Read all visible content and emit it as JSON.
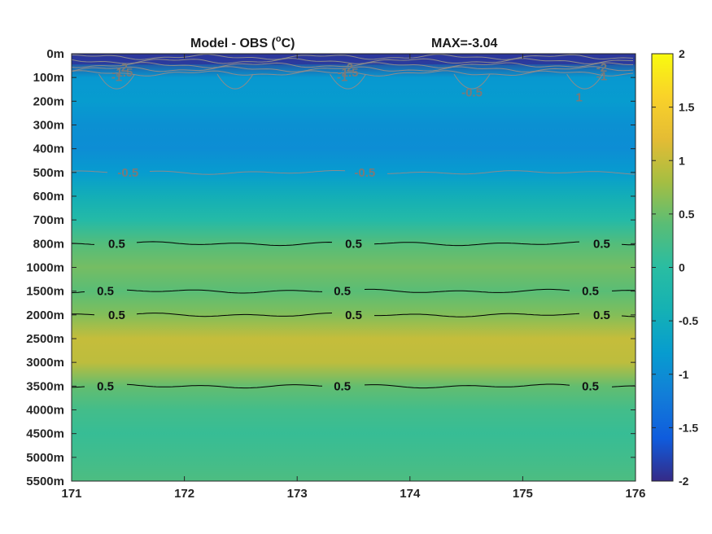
{
  "chart_data": {
    "type": "heatmap",
    "title": "Model - OBS (°C)",
    "title_left": "Model - OBS (",
    "title_degree": "o",
    "title_right": "C)",
    "annotation": "MAX=-3.04",
    "xlim": [
      171,
      176
    ],
    "x_ticks": [
      "171",
      "172",
      "173",
      "174",
      "175",
      "176"
    ],
    "y_ticks": [
      "0m",
      "100m",
      "200m",
      "300m",
      "400m",
      "500m",
      "600m",
      "700m",
      "800m",
      "1000m",
      "1500m",
      "2000m",
      "2500m",
      "3000m",
      "3500m",
      "4000m",
      "4500m",
      "5000m",
      "5500m"
    ],
    "colorbar": {
      "range": [
        -2,
        2
      ],
      "ticks": [
        "2",
        "1.5",
        "1",
        "0.5",
        "0",
        "-0.5",
        "-1",
        "-1.5",
        "-2"
      ],
      "colormap": "parula"
    },
    "depth_profile": [
      {
        "depth": "0m",
        "value": -2.0
      },
      {
        "depth": "100m",
        "value": -0.85
      },
      {
        "depth": "200m",
        "value": -0.8
      },
      {
        "depth": "300m",
        "value": -0.95
      },
      {
        "depth": "400m",
        "value": -1.0
      },
      {
        "depth": "500m",
        "value": -0.8
      },
      {
        "depth": "600m",
        "value": -0.45
      },
      {
        "depth": "700m",
        "value": -0.1
      },
      {
        "depth": "800m",
        "value": 0.35
      },
      {
        "depth": "1000m",
        "value": 0.55
      },
      {
        "depth": "1500m",
        "value": 0.4
      },
      {
        "depth": "2000m",
        "value": 0.62
      },
      {
        "depth": "2500m",
        "value": 1.0
      },
      {
        "depth": "3000m",
        "value": 0.95
      },
      {
        "depth": "3500m",
        "value": 0.45
      },
      {
        "depth": "4000m",
        "value": 0.22
      },
      {
        "depth": "4500m",
        "value": 0.12
      },
      {
        "depth": "5000m",
        "value": 0.2
      },
      {
        "depth": "5500m",
        "value": 0.3
      }
    ],
    "contours": [
      {
        "level": "0.5",
        "depth": "800m",
        "color": "#000000",
        "label_x": [
          171.4,
          173.5,
          175.7
        ]
      },
      {
        "level": "0.5",
        "depth": "1500m",
        "color": "#000000",
        "label_x": [
          171.3,
          173.4,
          175.6
        ]
      },
      {
        "level": "0.5",
        "depth": "2000m",
        "color": "#000000",
        "label_x": [
          171.4,
          173.5,
          175.7
        ]
      },
      {
        "level": "0.5",
        "depth": "3500m",
        "color": "#000000",
        "label_x": [
          171.3,
          173.4,
          175.6
        ]
      },
      {
        "level": "-0.5",
        "depth": "500m",
        "color": "#8c8c8c",
        "label_x": [
          171.5,
          173.6
        ]
      }
    ],
    "surface_labels": [
      "-2",
      "-1.5",
      "-1",
      "-0.5",
      "1"
    ]
  }
}
